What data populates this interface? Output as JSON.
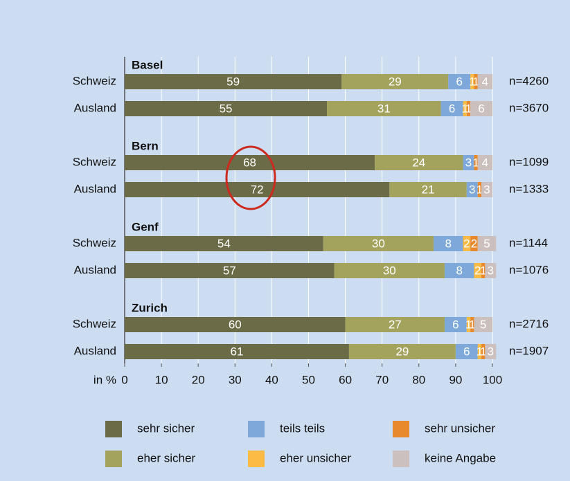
{
  "chart_data": {
    "type": "stacked-bar-horizontal",
    "groups": [
      "Basel",
      "Bern",
      "Genf",
      "Zurich"
    ],
    "categories": [
      "Schweiz",
      "Ausland",
      "Schweiz",
      "Ausland",
      "Schweiz",
      "Ausland",
      "Schweiz",
      "Ausland"
    ],
    "n_labels": [
      "n=4260",
      "n=3670",
      "n=1099",
      "n=1333",
      "n=1144",
      "n=1076",
      "n=2716",
      "n=1907"
    ],
    "xlabel": "in %",
    "xlim": [
      0,
      100
    ],
    "xticks": [
      0,
      10,
      20,
      30,
      40,
      50,
      60,
      70,
      80,
      90,
      100
    ],
    "grid": true,
    "series": [
      {
        "name": "sehr sicher",
        "color": "#6b6b47",
        "values": [
          59,
          55,
          68,
          72,
          54,
          57,
          60,
          61
        ]
      },
      {
        "name": "eher sicher",
        "color": "#a3a35e",
        "values": [
          29,
          31,
          24,
          21,
          30,
          30,
          27,
          29
        ]
      },
      {
        "name": "teils teils",
        "color": "#7ea8da",
        "values": [
          6,
          6,
          3,
          3,
          8,
          8,
          6,
          6
        ]
      },
      {
        "name": "eher unsicher",
        "color": "#fbbb44",
        "values": [
          1,
          1,
          0,
          0,
          2,
          2,
          1,
          1
        ],
        "value_labels": [
          "1",
          "1",
          null,
          null,
          "2",
          "2",
          "1",
          "1"
        ]
      },
      {
        "name": "sehr unsicher",
        "color": "#e8892e",
        "values": [
          1,
          1,
          1,
          1,
          2,
          1,
          1,
          1
        ]
      },
      {
        "name": "keine Angabe",
        "color": "#cbc0be",
        "values": [
          4,
          6,
          4,
          3,
          5,
          3,
          5,
          3
        ]
      }
    ]
  }
}
